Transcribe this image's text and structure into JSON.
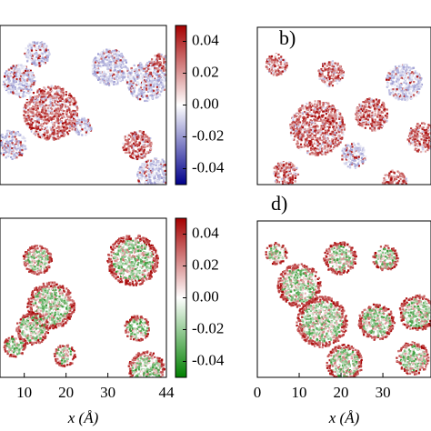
{
  "chart_data": [
    {
      "type": "heatmap",
      "colormap": [
        "#00008b",
        "#ffffff",
        "#a50000"
      ],
      "clim": [
        -0.05,
        0.05
      ],
      "cticks": [
        0.04,
        0.02,
        {
          "value": 0,
          "label": "0.00"
        },
        -0.02,
        -0.04
      ]
    },
    {
      "type": "heatmap",
      "panel_label": "b)",
      "colormap": [
        "#00008b",
        "#ffffff",
        "#a50000"
      ],
      "clim": [
        -0.05,
        0.05
      ]
    },
    {
      "type": "heatmap",
      "colormap": [
        "#008000",
        "#ffffff",
        "#a50000"
      ],
      "clim": [
        -0.05,
        0.05
      ],
      "cticks": [
        0.04,
        0.02,
        {
          "value": 0,
          "label": "0.00"
        },
        -0.02,
        -0.04
      ],
      "xlim": [
        4.2,
        44
      ],
      "xticks": [
        10,
        20,
        30,
        44
      ],
      "xlabel": "x (Å)"
    },
    {
      "type": "heatmap",
      "panel_label": "d)",
      "colormap": [
        "#008000",
        "#ffffff",
        "#a50000"
      ],
      "clim": [
        -0.05,
        0.05
      ],
      "xlim": [
        0,
        41.5
      ],
      "xticks": [
        0,
        10,
        20,
        30
      ],
      "xlabel": "x (Å)"
    }
  ]
}
